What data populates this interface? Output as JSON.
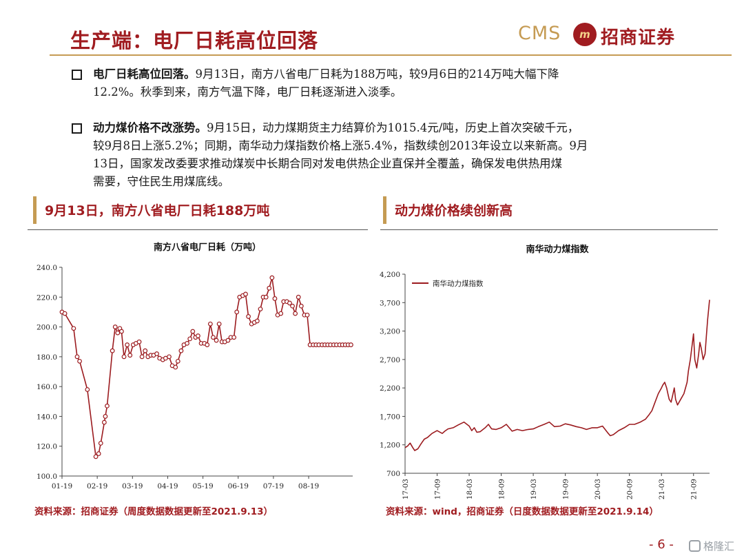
{
  "header": {
    "title": "生产端：电厂日耗高位回落",
    "logo": {
      "cms": "CMS",
      "name": "招商证券"
    }
  },
  "bullets": [
    {
      "lead": "电厂日耗高位回落。",
      "lines": [
        "9月13日，南方八省电厂日耗为188万吨，较9月6日的214万吨大幅下降",
        "12.2%。秋季到来，南方气温下降，电厂日耗逐渐进入淡季。"
      ]
    },
    {
      "lead": "动力煤价格不改涨势。",
      "lines": [
        "9月15日，动力煤期货主力结算价为1015.4元/吨，历史上首次突破千元，",
        "较9月8日上涨5.2%；同期，南华动力煤指数价格上涨5.4%，指数续创2013年设立以来新高。9月",
        "13日，国家发改委要求推动煤炭中长期合同对发电供热企业直保并全覆盖，确保发电供热用煤",
        "需要，守住民生用煤底线。"
      ]
    }
  ],
  "sections": {
    "left_title": "9月13日，南方八省电厂日耗188万吨",
    "right_title": "动力煤价格续创新高"
  },
  "chart_data": [
    {
      "type": "line",
      "title": "南方八省电厂日耗（万吨）",
      "ylim": [
        100,
        240
      ],
      "yticks": [
        "100.0",
        "120.0",
        "140.0",
        "160.0",
        "180.0",
        "200.0",
        "220.0",
        "240.0"
      ],
      "xticks": [
        "01-19",
        "02-19",
        "03-19",
        "04-19",
        "05-19",
        "06-19",
        "07-19",
        "08-19"
      ],
      "xlim": [
        1,
        9.25
      ],
      "color": "#9b1a1e",
      "series": [
        {
          "x": [
            1.0,
            1.08,
            1.33,
            1.43,
            1.5,
            1.72,
            1.96,
            2.04,
            2.1,
            2.2,
            2.23,
            2.28,
            2.43,
            2.51,
            2.58,
            2.64,
            2.69,
            2.76,
            2.85,
            2.93,
            3.02,
            3.1,
            3.19,
            3.27,
            3.36,
            3.44,
            3.52,
            3.6,
            3.69,
            3.77,
            3.86,
            3.94,
            4.04,
            4.13,
            4.22,
            4.29,
            4.38,
            4.46,
            4.55,
            4.63,
            4.71,
            4.79,
            4.86,
            4.95,
            5.04,
            5.12,
            5.21,
            5.29,
            5.38,
            5.46,
            5.54,
            5.62,
            5.71,
            5.79,
            5.88,
            5.96,
            6.04,
            6.13,
            6.21,
            6.29,
            6.38,
            6.46,
            6.54,
            6.63,
            6.71,
            6.79,
            6.88,
            6.96,
            7.04,
            7.12,
            7.21,
            7.29,
            7.38,
            7.46,
            7.54,
            7.62,
            7.71,
            7.79,
            7.88,
            7.96,
            8.04,
            8.13,
            8.21,
            8.29,
            8.38,
            8.46,
            8.54,
            8.62,
            8.71,
            8.79,
            8.88,
            8.96,
            9.04,
            9.12,
            9.2
          ],
          "y": [
            210,
            209,
            199,
            180,
            177,
            158,
            113,
            115,
            122,
            136,
            140,
            147,
            184,
            200,
            196,
            199,
            197,
            180,
            188,
            181,
            188,
            189,
            190,
            180,
            184,
            180,
            181,
            181,
            182,
            179,
            178,
            179,
            180,
            174,
            173,
            177,
            184,
            188,
            189,
            192,
            197,
            193,
            194,
            189,
            189,
            188,
            202,
            193,
            191,
            202,
            190,
            190,
            191,
            193,
            193,
            210,
            220,
            221,
            222,
            207,
            202,
            203,
            204,
            212,
            220,
            220,
            226,
            233,
            219,
            208,
            209,
            217,
            217,
            216,
            214,
            209,
            220,
            214,
            208,
            208,
            188,
            188,
            188,
            188,
            188,
            188,
            188,
            188,
            188,
            188,
            188,
            188,
            188,
            188,
            188
          ]
        }
      ]
    },
    {
      "type": "line",
      "title": "南华动力煤指数",
      "legend": "南华动力煤指数",
      "legend_position": "top-left",
      "ylim": [
        700,
        4200
      ],
      "yticks": [
        "700",
        "1,200",
        "1,700",
        "2,200",
        "2,700",
        "3,200",
        "3,700",
        "4,200"
      ],
      "xticks": [
        "17-03",
        "17-09",
        "18-03",
        "18-09",
        "19-03",
        "19-09",
        "20-03",
        "20-09",
        "21-03",
        "21-09"
      ],
      "xlim": [
        2017.0,
        2021.75
      ],
      "color": "#9b1a1e",
      "series": [
        {
          "name": "南华动力煤指数",
          "x": [
            2017.0,
            2017.04,
            2017.08,
            2017.12,
            2017.15,
            2017.2,
            2017.25,
            2017.3,
            2017.35,
            2017.42,
            2017.5,
            2017.58,
            2017.62,
            2017.67,
            2017.75,
            2017.83,
            2017.92,
            2018.0,
            2018.04,
            2018.08,
            2018.12,
            2018.17,
            2018.25,
            2018.3,
            2018.35,
            2018.42,
            2018.5,
            2018.58,
            2018.67,
            2018.75,
            2018.83,
            2018.92,
            2019.0,
            2019.08,
            2019.17,
            2019.25,
            2019.33,
            2019.42,
            2019.5,
            2019.58,
            2019.67,
            2019.75,
            2019.83,
            2019.92,
            2020.0,
            2020.08,
            2020.17,
            2020.2,
            2020.25,
            2020.33,
            2020.42,
            2020.5,
            2020.58,
            2020.67,
            2020.75,
            2020.8,
            2020.85,
            2020.9,
            2020.95,
            2021.0,
            2021.02,
            2021.05,
            2021.08,
            2021.1,
            2021.12,
            2021.15,
            2021.18,
            2021.2,
            2021.22,
            2021.25,
            2021.3,
            2021.35,
            2021.4,
            2021.42,
            2021.45,
            2021.5,
            2021.52,
            2021.55,
            2021.58,
            2021.6,
            2021.62,
            2021.65,
            2021.68,
            2021.7,
            2021.72,
            2021.75
          ],
          "y": [
            1150,
            1180,
            1230,
            1150,
            1100,
            1130,
            1220,
            1300,
            1330,
            1400,
            1450,
            1400,
            1440,
            1480,
            1500,
            1550,
            1600,
            1530,
            1450,
            1500,
            1420,
            1430,
            1500,
            1560,
            1480,
            1470,
            1500,
            1560,
            1440,
            1470,
            1450,
            1470,
            1480,
            1520,
            1560,
            1600,
            1520,
            1530,
            1570,
            1550,
            1520,
            1500,
            1470,
            1500,
            1500,
            1530,
            1400,
            1360,
            1380,
            1450,
            1500,
            1560,
            1560,
            1600,
            1650,
            1720,
            1800,
            1950,
            2100,
            2200,
            2250,
            2300,
            2200,
            2100,
            2000,
            1950,
            2100,
            2200,
            2000,
            1900,
            2000,
            2100,
            2300,
            2500,
            2700,
            3150,
            2700,
            2550,
            2800,
            3000,
            2900,
            2700,
            2800,
            3100,
            3400,
            3750
          ]
        }
      ]
    }
  ],
  "sources": {
    "left": "资料来源：招商证券（周度数据数据更新至2021.9.13）",
    "right": "资料来源：wind，招商证券（日度数据数据更新至2021.9.14）"
  },
  "footer": {
    "page_number": "- 6 -",
    "watermark": "格隆汇"
  }
}
